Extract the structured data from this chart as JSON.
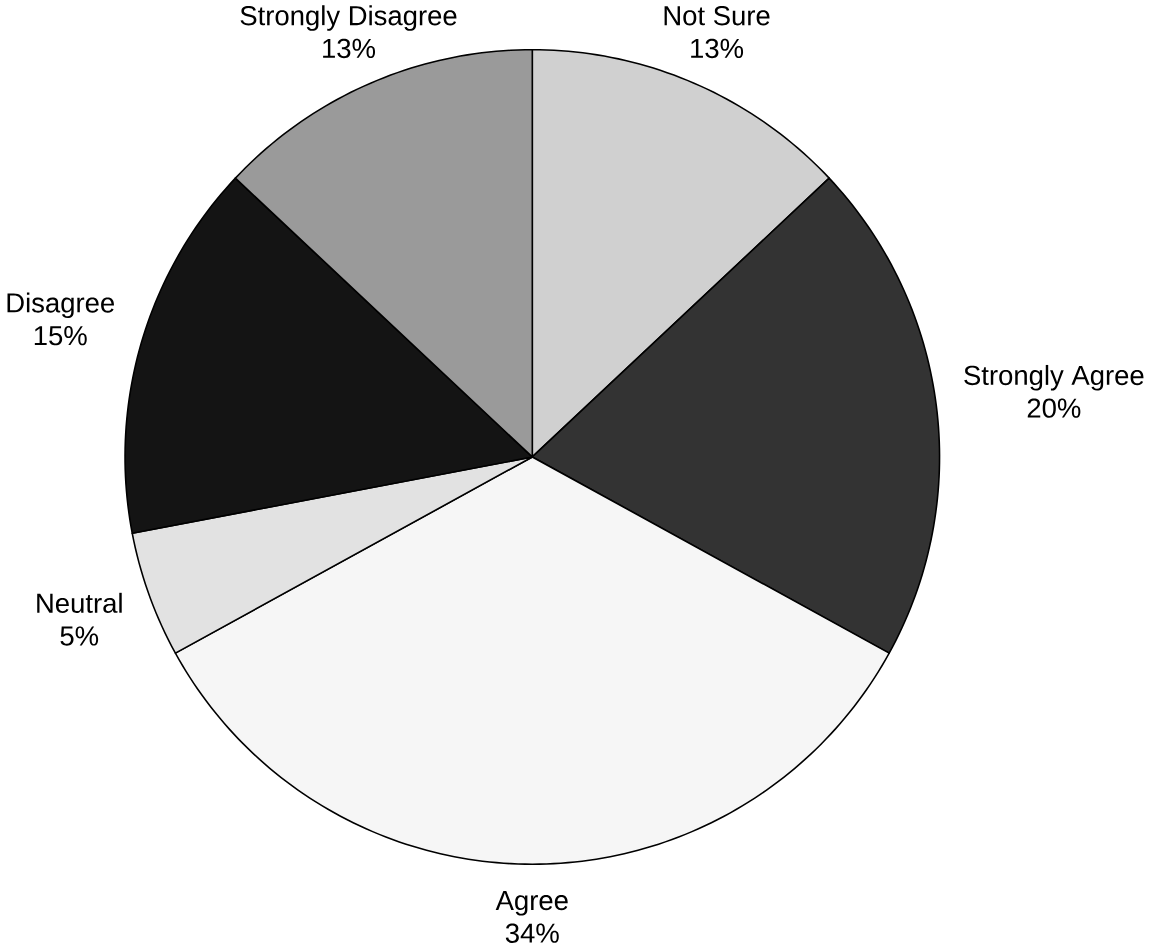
{
  "chart_data": {
    "type": "pie",
    "categories": [
      "Not Sure",
      "Strongly Agree",
      "Agree",
      "Neutral",
      "Disagree",
      "Strongly Disagree"
    ],
    "values": [
      13,
      20,
      34,
      5,
      15,
      13
    ],
    "value_labels": [
      "13%",
      "20%",
      "34%",
      "5%",
      "15%",
      "13%"
    ],
    "colors": [
      "#d0d0d0",
      "#333333",
      "#f6f6f6",
      "#e2e2e2",
      "#141414",
      "#9a9a9a"
    ]
  }
}
